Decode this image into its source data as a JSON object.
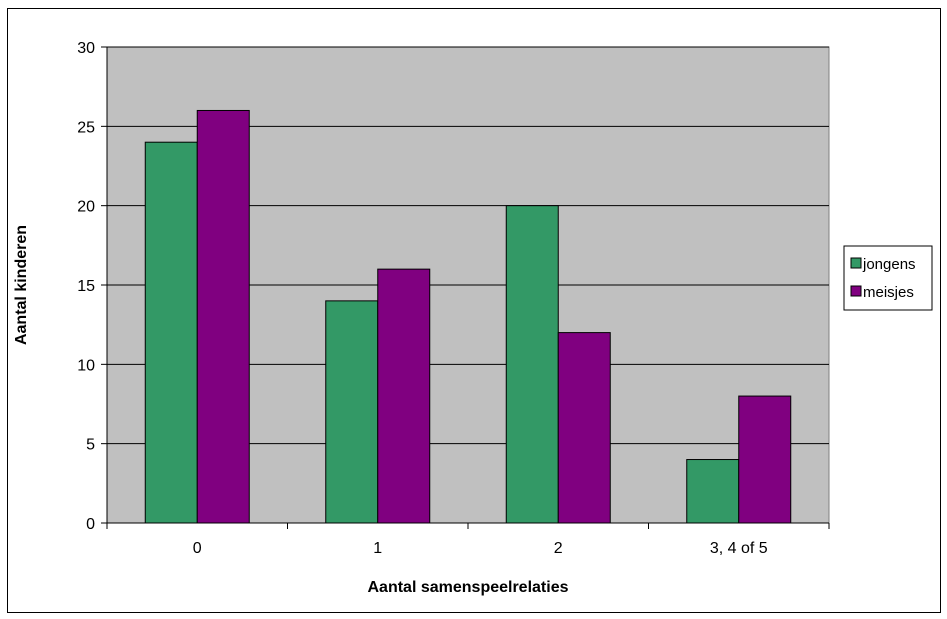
{
  "chart_data": {
    "type": "bar",
    "categories": [
      "0",
      "1",
      "2",
      "3, 4 of 5"
    ],
    "series": [
      {
        "name": "jongens",
        "values": [
          24,
          14,
          20,
          4
        ],
        "color": "#339966"
      },
      {
        "name": "meisjes",
        "values": [
          26,
          16,
          12,
          8
        ],
        "color": "#800080"
      }
    ],
    "xlabel": "Aantal samenspeelrelaties",
    "ylabel": "Aantal kinderen",
    "ylim": [
      0,
      30
    ],
    "yticks": [
      0,
      5,
      10,
      15,
      20,
      25,
      30
    ],
    "grid": true,
    "plot_background": "#c0c0c0",
    "legend_position": "right"
  }
}
